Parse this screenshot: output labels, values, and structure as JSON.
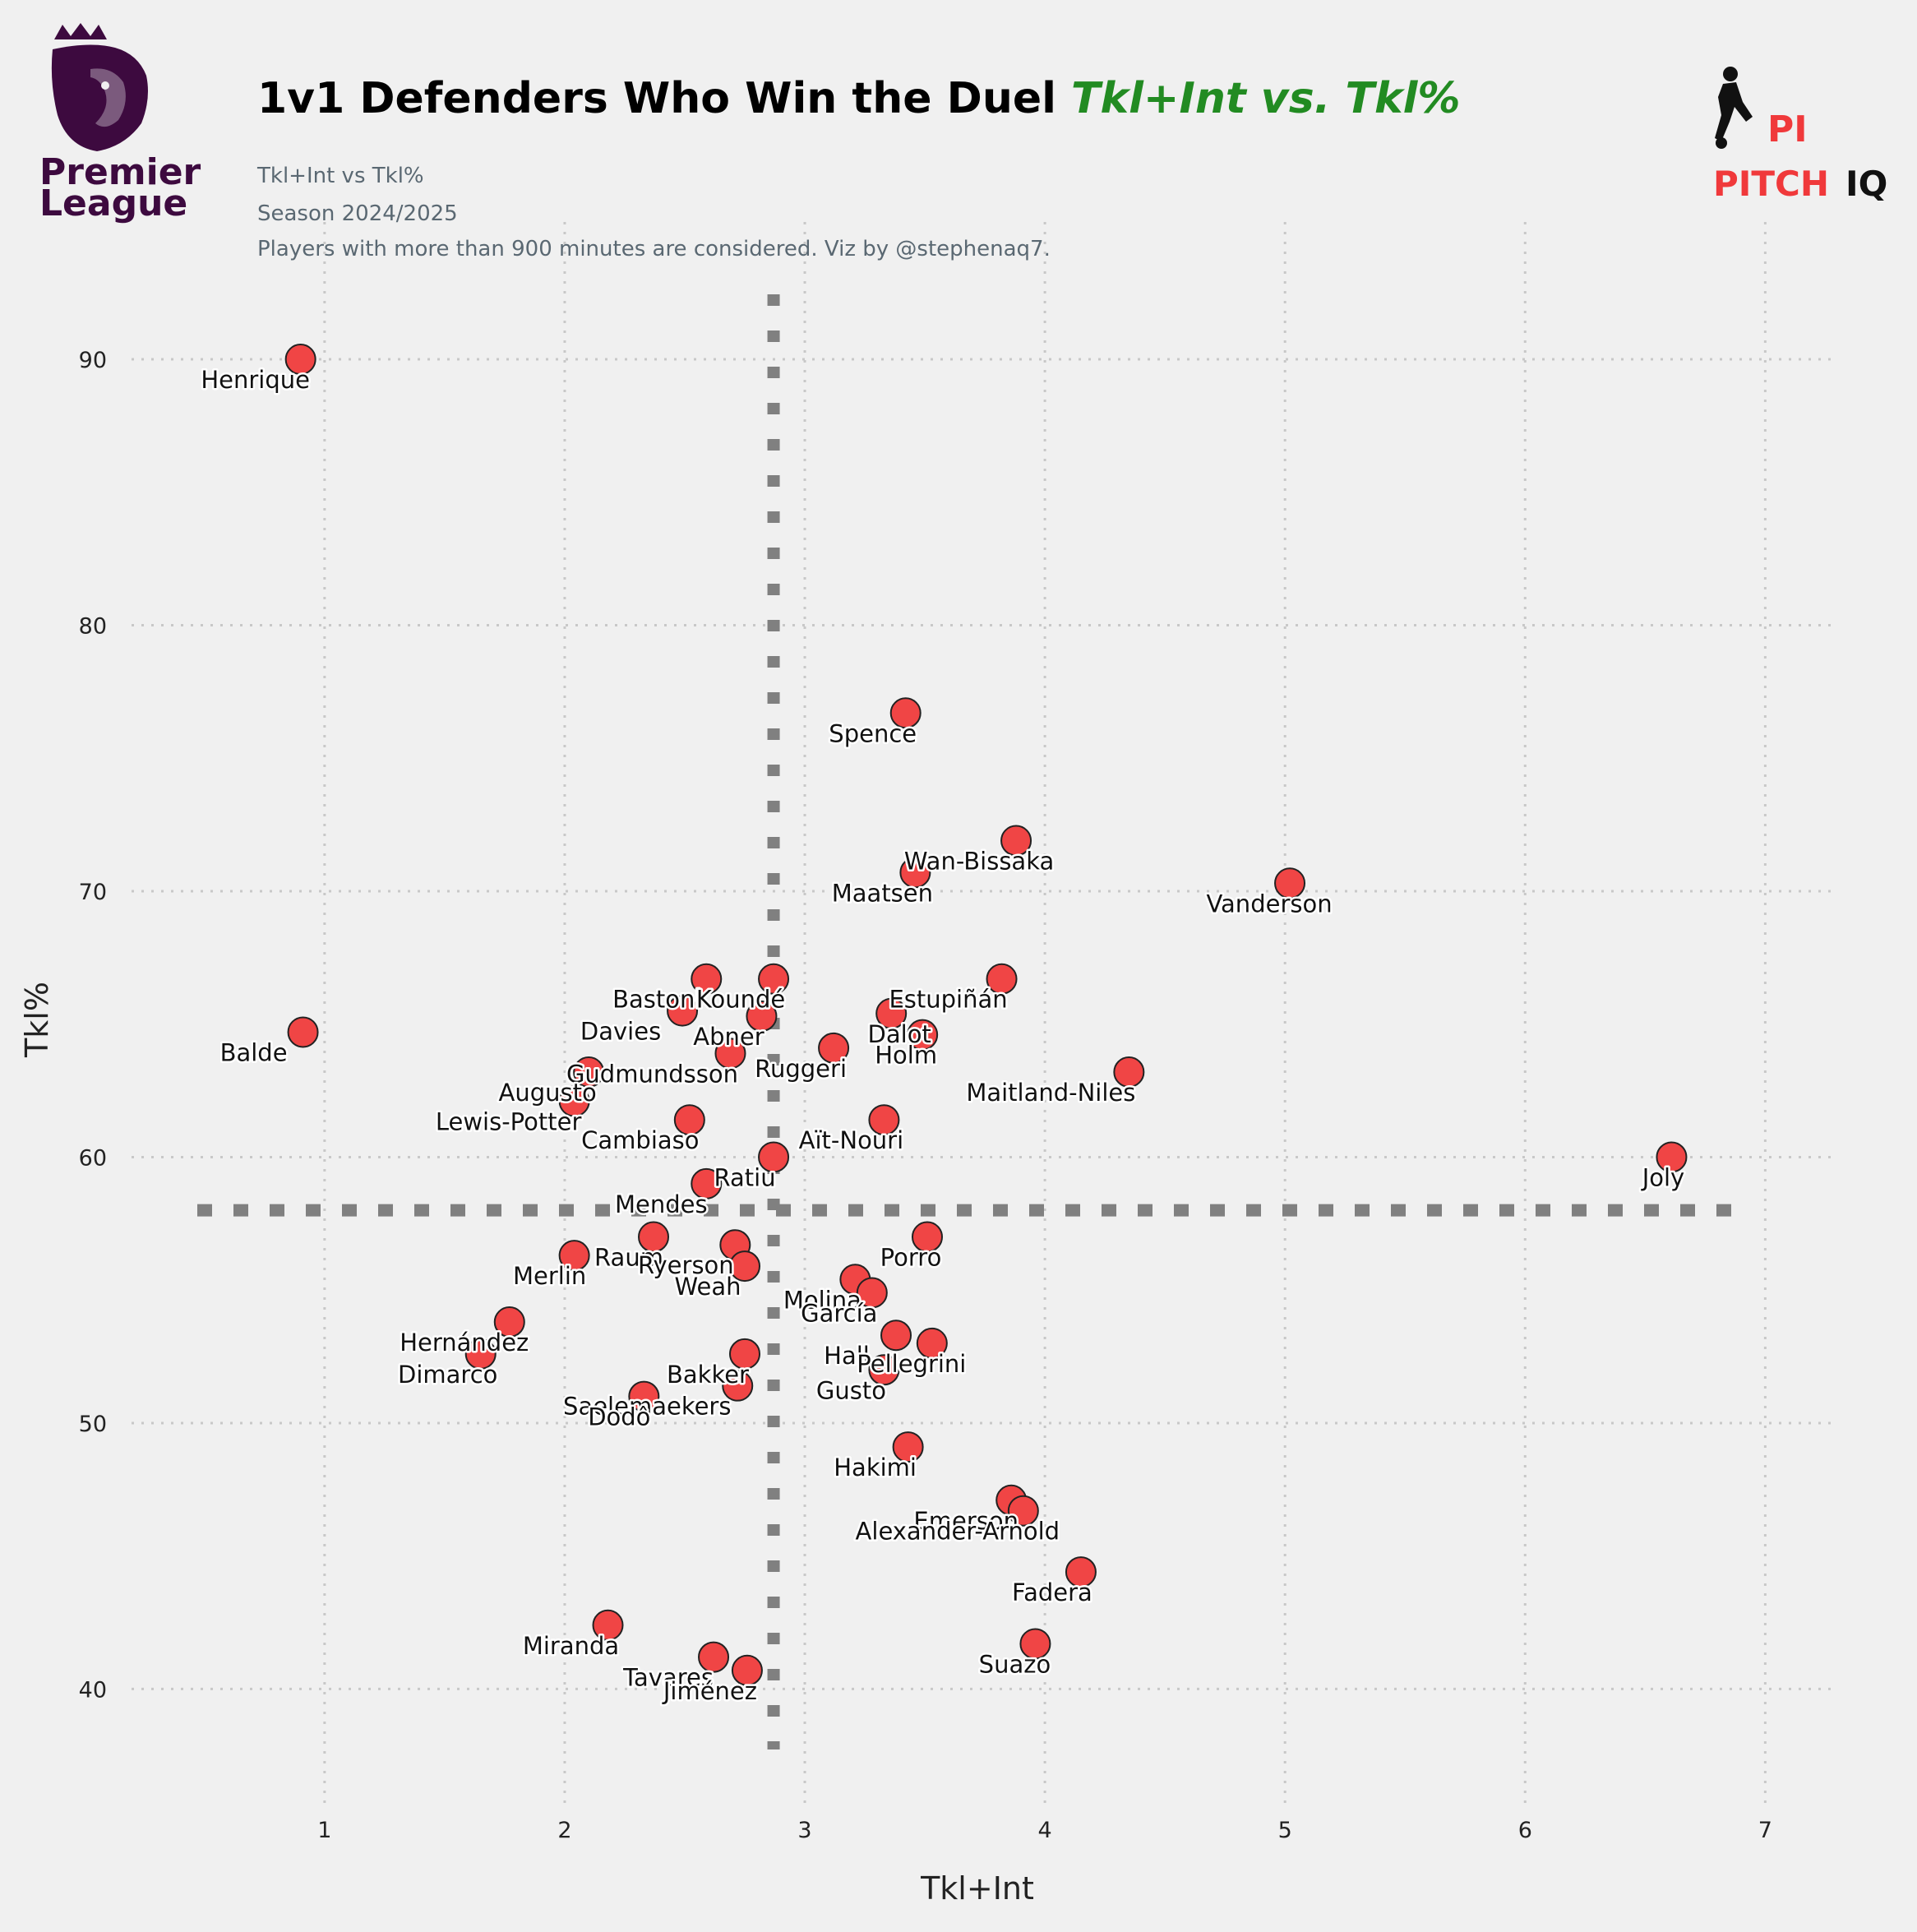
{
  "header": {
    "title_main": "1v1 Defenders Who Win the Duel ",
    "title_accent": "Tkl+Int vs. Tkl%",
    "subtitle_lines": [
      "Tkl+Int vs Tkl%",
      "Season 2024/2025",
      "Players with more than 900 minutes are considered. Viz by @stephenaq7."
    ]
  },
  "logos": {
    "left": {
      "icon": "premier-league-lion-icon",
      "line1": "Premier",
      "line2": "League",
      "color": "#3d0a3f"
    },
    "right": {
      "icon": "pitch-iq-player-icon",
      "mark": "PI",
      "word1": "PITCH",
      "word2": "IQ",
      "color_red": "#f0393b",
      "color_dark": "#111111"
    }
  },
  "colors": {
    "background": "#f0f0f0",
    "accent": "#228b22",
    "point_fill": "#f04545",
    "point_stroke": "#222222",
    "grid": "#c8c8c8",
    "reference_line": "#808080"
  },
  "chart_data": {
    "type": "scatter",
    "title": "1v1 Defenders Who Win the Duel Tkl+Int vs. Tkl%",
    "xlabel": "Tkl+Int",
    "ylabel": "Tkl%",
    "xlim": [
      0.35,
      7.3
    ],
    "ylim": [
      35.5,
      93
    ],
    "xticks": [
      1,
      2,
      3,
      4,
      5,
      6,
      7
    ],
    "yticks": [
      40,
      50,
      60,
      70,
      80,
      90
    ],
    "grid": true,
    "reference_lines": {
      "x": 2.87,
      "y": 58
    },
    "points": [
      {
        "label": "Henrique",
        "x": 0.9,
        "y": 90.0
      },
      {
        "label": "Spence",
        "x": 3.42,
        "y": 76.7
      },
      {
        "label": "Wan-Bissaka",
        "x": 3.88,
        "y": 71.9
      },
      {
        "label": "Maatsen",
        "x": 3.46,
        "y": 70.7
      },
      {
        "label": "Vanderson",
        "x": 5.02,
        "y": 70.3
      },
      {
        "label": "Balde",
        "x": 0.91,
        "y": 64.7
      },
      {
        "label": "Bastoni",
        "x": 2.59,
        "y": 66.7
      },
      {
        "label": "Koundé",
        "x": 2.87,
        "y": 66.7
      },
      {
        "label": "Estupiñán",
        "x": 3.82,
        "y": 66.7
      },
      {
        "label": "Davies",
        "x": 2.49,
        "y": 65.5
      },
      {
        "label": "Abner",
        "x": 2.82,
        "y": 65.3
      },
      {
        "label": "Dalot",
        "x": 3.36,
        "y": 65.4
      },
      {
        "label": "Holm",
        "x": 3.49,
        "y": 64.6
      },
      {
        "label": "Ruggeri",
        "x": 3.12,
        "y": 64.1
      },
      {
        "label": "Gudmundsson",
        "x": 2.69,
        "y": 63.9
      },
      {
        "label": "Augusto",
        "x": 2.1,
        "y": 63.2
      },
      {
        "label": "Maitland-Niles",
        "x": 4.35,
        "y": 63.2
      },
      {
        "label": "Lewis-Potter",
        "x": 2.04,
        "y": 62.1
      },
      {
        "label": "Cambiaso",
        "x": 2.52,
        "y": 61.4
      },
      {
        "label": "Aït-Nouri",
        "x": 3.33,
        "y": 61.4
      },
      {
        "label": "Ratiu",
        "x": 2.87,
        "y": 60.0
      },
      {
        "label": "Joly",
        "x": 6.61,
        "y": 60.0
      },
      {
        "label": "Mendes",
        "x": 2.59,
        "y": 59.0
      },
      {
        "label": "Raum",
        "x": 2.37,
        "y": 57.0
      },
      {
        "label": "Ryerson",
        "x": 2.71,
        "y": 56.7
      },
      {
        "label": "Porro",
        "x": 3.51,
        "y": 57.0
      },
      {
        "label": "Merlin",
        "x": 2.04,
        "y": 56.3
      },
      {
        "label": "Weah",
        "x": 2.75,
        "y": 55.9
      },
      {
        "label": "Molina",
        "x": 3.21,
        "y": 55.4
      },
      {
        "label": "García",
        "x": 3.28,
        "y": 54.9
      },
      {
        "label": "Hernández",
        "x": 1.77,
        "y": 53.8
      },
      {
        "label": "Hall",
        "x": 3.38,
        "y": 53.3
      },
      {
        "label": "Pellegrini",
        "x": 3.53,
        "y": 53.0
      },
      {
        "label": "Dimarco",
        "x": 1.65,
        "y": 52.6
      },
      {
        "label": "Bakker",
        "x": 2.75,
        "y": 52.6
      },
      {
        "label": "Gusto",
        "x": 3.33,
        "y": 52.0
      },
      {
        "label": "Saelemaekers",
        "x": 2.72,
        "y": 51.4
      },
      {
        "label": "Dodô",
        "x": 2.33,
        "y": 51.0
      },
      {
        "label": "Hakimi",
        "x": 3.43,
        "y": 49.1
      },
      {
        "label": "Emerson",
        "x": 3.86,
        "y": 47.1
      },
      {
        "label": "Alexander-Arnold",
        "x": 3.91,
        "y": 46.7
      },
      {
        "label": "Fadera",
        "x": 4.15,
        "y": 44.4
      },
      {
        "label": "Miranda",
        "x": 2.18,
        "y": 42.4
      },
      {
        "label": "Suazo",
        "x": 3.96,
        "y": 41.7
      },
      {
        "label": "Tavares",
        "x": 2.62,
        "y": 41.2
      },
      {
        "label": "Jiménez",
        "x": 2.76,
        "y": 40.7
      }
    ]
  }
}
